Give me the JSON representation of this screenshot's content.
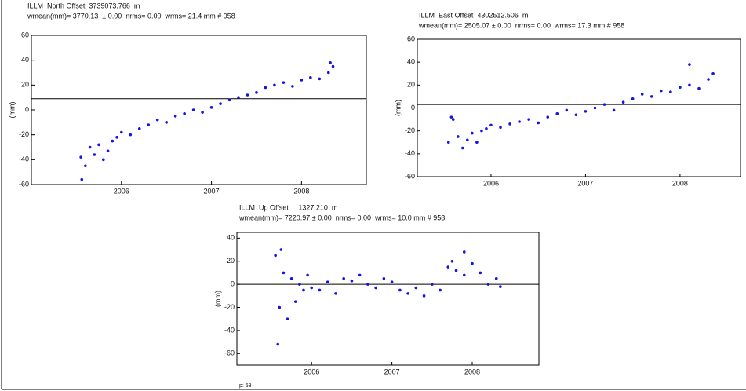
{
  "chart_data": [
    {
      "type": "scatter",
      "title": "ILLM  North Offset  3739073.766  m",
      "subtitle": "wmean(mm)= 3770.13  ± 0.00  nrms= 0.00  wrms= 21.4 mm # 958",
      "y_label": "(mm)",
      "color": "#1414e6",
      "xlim": [
        2005.0,
        2008.72
      ],
      "xticks": [
        2006,
        2007,
        2008
      ],
      "ylim": [
        -60,
        60
      ],
      "yticks": [
        -60,
        -40,
        -20,
        0,
        20,
        40,
        60
      ],
      "ref_line": 9,
      "x": [
        2005.55,
        2005.6,
        2005.65,
        2005.7,
        2005.75,
        2005.8,
        2005.85,
        2005.9,
        2005.95,
        2006.0,
        2006.1,
        2006.2,
        2006.3,
        2006.4,
        2006.5,
        2006.6,
        2006.7,
        2006.8,
        2006.9,
        2007.0,
        2007.1,
        2007.2,
        2007.3,
        2007.4,
        2007.5,
        2007.6,
        2007.7,
        2007.8,
        2007.9,
        2008.0,
        2008.1,
        2008.2,
        2008.3,
        2008.35,
        2005.56,
        2008.32
      ],
      "y": [
        -38,
        -45,
        -30,
        -36,
        -28,
        -40,
        -33,
        -25,
        -22,
        -18,
        -20,
        -15,
        -12,
        -8,
        -10,
        -5,
        -3,
        0,
        -2,
        2,
        5,
        8,
        10,
        12,
        14,
        18,
        20,
        22,
        19,
        24,
        26,
        25,
        30,
        35,
        -56,
        38
      ]
    },
    {
      "type": "scatter",
      "title": "ILLM  East Offset  4302512.506  m",
      "subtitle": "wmean(mm)= 2505.07 ± 0.00  nrms= 0.00  wrms= 17.3 mm # 958",
      "y_label": "(mm)",
      "color": "#1414e6",
      "xlim": [
        2005.22,
        2008.64
      ],
      "xticks": [
        2006,
        2007,
        2008
      ],
      "ylim": [
        -60,
        60
      ],
      "yticks": [
        -60,
        -40,
        -20,
        0,
        20,
        40,
        60
      ],
      "ref_line": 3,
      "x": [
        2005.55,
        2005.6,
        2005.65,
        2005.7,
        2005.75,
        2005.8,
        2005.85,
        2005.9,
        2005.95,
        2006.0,
        2006.1,
        2006.2,
        2006.3,
        2006.4,
        2006.5,
        2006.6,
        2006.7,
        2006.8,
        2006.9,
        2007.0,
        2007.1,
        2007.2,
        2007.3,
        2007.4,
        2007.5,
        2007.6,
        2007.7,
        2007.8,
        2007.9,
        2008.0,
        2008.1,
        2008.2,
        2008.3,
        2008.35,
        2005.58,
        2008.1
      ],
      "y": [
        -30,
        -10,
        -25,
        -35,
        -28,
        -22,
        -30,
        -20,
        -18,
        -15,
        -17,
        -14,
        -12,
        -10,
        -13,
        -8,
        -5,
        -2,
        -6,
        -3,
        0,
        3,
        -2,
        5,
        8,
        12,
        10,
        15,
        14,
        18,
        20,
        17,
        25,
        30,
        -8,
        38
      ]
    },
    {
      "type": "scatter",
      "title": "ILLM  Up Offset     1327.210  m",
      "subtitle": "wmean(mm)= 7220.97 ± 0.00  nrms= 0.00  wrms= 10.0 mm # 958",
      "y_label": "(mm)",
      "color": "#1414e6",
      "xlim": [
        2005.07,
        2008.83
      ],
      "xticks": [
        2006,
        2007,
        2008
      ],
      "ylim": [
        -70,
        45
      ],
      "yticks": [
        -60,
        -40,
        -20,
        0,
        20,
        40
      ],
      "ref_line": 0,
      "x": [
        2005.55,
        2005.6,
        2005.65,
        2005.7,
        2005.75,
        2005.8,
        2005.85,
        2005.9,
        2005.95,
        2006.0,
        2006.1,
        2006.2,
        2006.3,
        2006.4,
        2006.5,
        2006.6,
        2006.7,
        2006.8,
        2006.9,
        2007.0,
        2007.1,
        2007.2,
        2007.3,
        2007.4,
        2007.5,
        2007.6,
        2007.7,
        2007.8,
        2007.9,
        2008.0,
        2008.1,
        2008.2,
        2008.3,
        2008.35,
        2005.58,
        2005.62,
        2007.75,
        2007.9
      ],
      "y": [
        25,
        -20,
        10,
        -30,
        5,
        -15,
        0,
        -5,
        8,
        -3,
        -5,
        2,
        -8,
        5,
        3,
        8,
        0,
        -3,
        5,
        2,
        -5,
        -8,
        -3,
        -10,
        0,
        -5,
        15,
        12,
        8,
        18,
        10,
        0,
        5,
        -2,
        -52,
        30,
        20,
        28
      ]
    }
  ],
  "footer": "p: 58"
}
